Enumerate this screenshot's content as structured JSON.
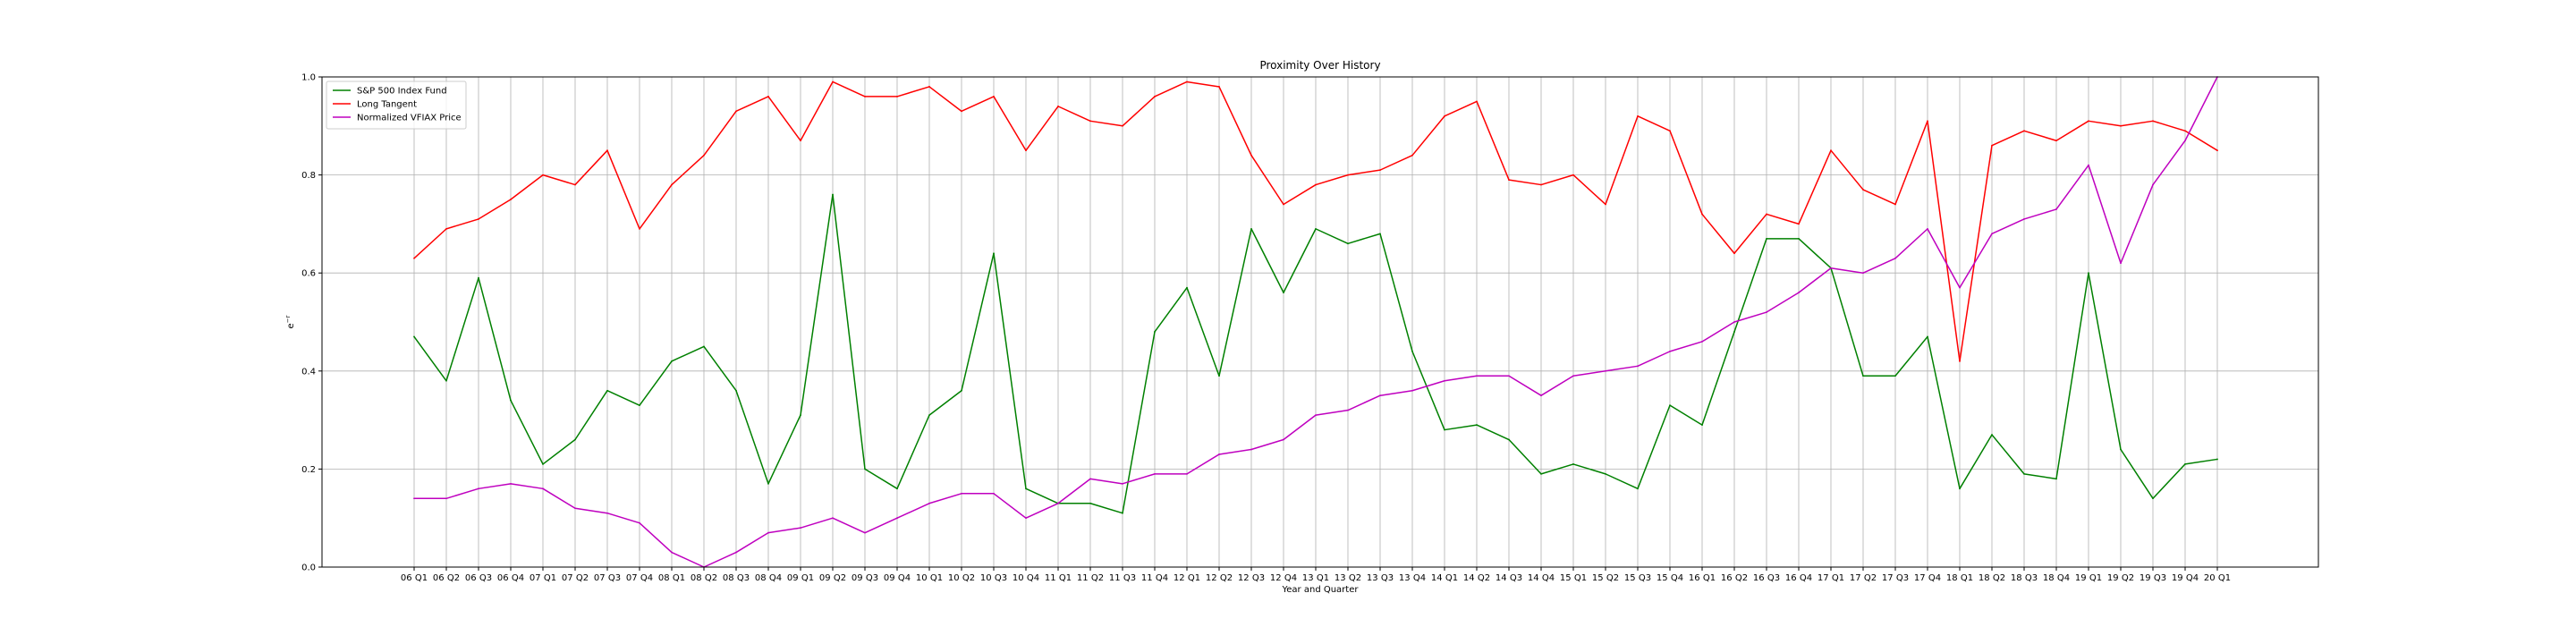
{
  "chart_data": {
    "type": "line",
    "title": "Proximity Over History",
    "xlabel": "Year and Quarter",
    "ylabel": "e^{-r}",
    "ylim": [
      0,
      1
    ],
    "yticks": [
      "0.0",
      "0.2",
      "0.4",
      "0.6",
      "0.8",
      "1.0"
    ],
    "grid": true,
    "legend_position": "top-left",
    "categories": [
      "06 Q1",
      "06 Q2",
      "06 Q3",
      "06 Q4",
      "07 Q1",
      "07 Q2",
      "07 Q3",
      "07 Q4",
      "08 Q1",
      "08 Q2",
      "08 Q3",
      "08 Q4",
      "09 Q1",
      "09 Q2",
      "09 Q3",
      "09 Q4",
      "10 Q1",
      "10 Q2",
      "10 Q3",
      "10 Q4",
      "11 Q1",
      "11 Q2",
      "11 Q3",
      "11 Q4",
      "12 Q1",
      "12 Q2",
      "12 Q3",
      "12 Q4",
      "13 Q1",
      "13 Q2",
      "13 Q3",
      "13 Q4",
      "14 Q1",
      "14 Q2",
      "14 Q3",
      "14 Q4",
      "15 Q1",
      "15 Q2",
      "15 Q3",
      "15 Q4",
      "16 Q1",
      "16 Q2",
      "16 Q3",
      "16 Q4",
      "17 Q1",
      "17 Q2",
      "17 Q3",
      "17 Q4",
      "18 Q1",
      "18 Q2",
      "18 Q3",
      "18 Q4",
      "19 Q1",
      "19 Q2",
      "19 Q3",
      "19 Q4",
      "20 Q1"
    ],
    "series": [
      {
        "name": "S&P 500 Index Fund",
        "color": "#008000",
        "values": [
          0.47,
          0.38,
          0.59,
          0.34,
          0.21,
          0.26,
          0.36,
          0.33,
          0.42,
          0.45,
          0.36,
          0.17,
          0.31,
          0.76,
          0.2,
          0.16,
          0.31,
          0.36,
          0.64,
          0.16,
          0.13,
          0.13,
          0.11,
          0.48,
          0.57,
          0.39,
          0.69,
          0.56,
          0.69,
          0.66,
          0.68,
          0.44,
          0.28,
          0.29,
          0.26,
          0.19,
          0.21,
          0.19,
          0.16,
          0.33,
          0.29,
          0.48,
          0.67,
          0.67,
          0.61,
          0.39,
          0.39,
          0.47,
          0.16,
          0.27,
          0.19,
          0.18,
          0.6,
          0.24,
          0.14,
          0.21,
          0.22
        ]
      },
      {
        "name": "Long Tangent",
        "color": "#ff0000",
        "values": [
          0.63,
          0.69,
          0.71,
          0.75,
          0.8,
          0.78,
          0.85,
          0.69,
          0.78,
          0.84,
          0.93,
          0.96,
          0.87,
          0.99,
          0.96,
          0.96,
          0.98,
          0.93,
          0.96,
          0.85,
          0.94,
          0.91,
          0.9,
          0.96,
          0.99,
          0.98,
          0.84,
          0.74,
          0.78,
          0.8,
          0.81,
          0.84,
          0.92,
          0.95,
          0.79,
          0.78,
          0.8,
          0.74,
          0.92,
          0.89,
          0.72,
          0.64,
          0.72,
          0.7,
          0.85,
          0.77,
          0.74,
          0.91,
          0.42,
          0.86,
          0.89,
          0.87,
          0.91,
          0.9,
          0.91,
          0.89,
          0.85
        ]
      },
      {
        "name": "Normalized VFIAX Price",
        "color": "#bf00bf",
        "values": [
          0.14,
          0.14,
          0.16,
          0.17,
          0.16,
          0.12,
          0.11,
          0.09,
          0.03,
          0.0,
          0.03,
          0.07,
          0.08,
          0.1,
          0.07,
          0.1,
          0.13,
          0.15,
          0.15,
          0.1,
          0.13,
          0.18,
          0.17,
          0.19,
          0.19,
          0.23,
          0.24,
          0.26,
          0.31,
          0.32,
          0.35,
          0.36,
          0.38,
          0.39,
          0.39,
          0.35,
          0.39,
          0.4,
          0.41,
          0.44,
          0.46,
          0.5,
          0.52,
          0.56,
          0.61,
          0.6,
          0.63,
          0.69,
          0.57,
          0.68,
          0.71,
          0.73,
          0.82,
          0.62,
          0.78,
          0.87,
          1.0
        ]
      }
    ]
  }
}
